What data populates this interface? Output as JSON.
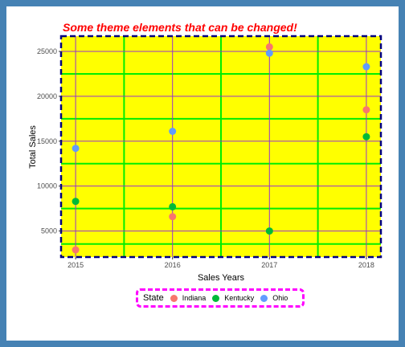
{
  "chart_data": {
    "type": "scatter",
    "title": "Some theme elements that can be changed!",
    "xlabel": "Sales Years",
    "ylabel": "Total Sales",
    "x_ticks": [
      "2015",
      "2016",
      "2017",
      "2018"
    ],
    "y_ticks": [
      "5000",
      "10000",
      "15000",
      "20000",
      "25000"
    ],
    "xlim": [
      2014.85,
      2018.15
    ],
    "ylim": [
      2100,
      26700
    ],
    "legend_title": "State",
    "legend_position": "bottom",
    "series": [
      {
        "name": "Indiana",
        "color": "#f8766d",
        "x": [
          2015,
          2016,
          2017,
          2018
        ],
        "y": [
          2900,
          6600,
          25500,
          18500
        ]
      },
      {
        "name": "Kentucky",
        "color": "#00ba38",
        "x": [
          2015,
          2016,
          2017,
          2018
        ],
        "y": [
          8300,
          7700,
          5000,
          15500
        ]
      },
      {
        "name": "Ohio",
        "color": "#619cff",
        "x": [
          2015,
          2016,
          2017,
          2018
        ],
        "y": [
          14200,
          16100,
          24800,
          23300
        ]
      }
    ],
    "panel_background": "#ffff00",
    "major_grid_color": "#9933cc",
    "minor_grid_color": "#00ee00",
    "panel_border_color": "#000080",
    "legend_border_color": "#ff00ff",
    "title_color": "#ff0000",
    "plot_background": "#ffffff",
    "outer_border_color": "#4682b4"
  }
}
